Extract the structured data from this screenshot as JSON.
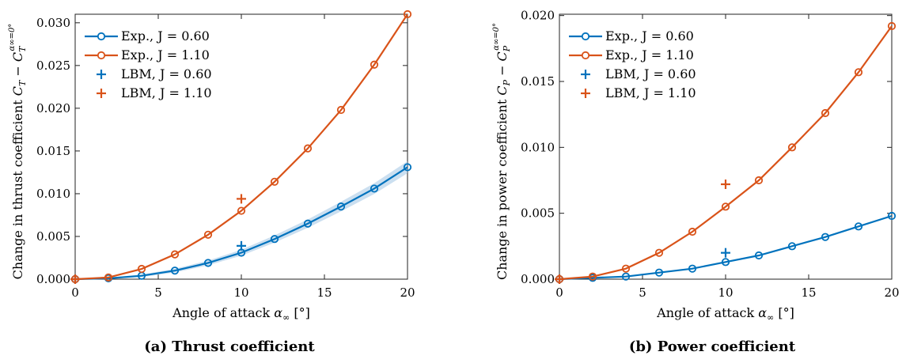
{
  "colors": {
    "blue": "#0072BD",
    "orange": "#D95319",
    "band": "#A8CAE6"
  },
  "chart_data": [
    {
      "type": "line",
      "caption": "(a) Thrust coefficient",
      "xlabel": "Angle of attack α∞ [°]",
      "ylabel": "Change in thrust coefficient C_T − C_T^(α∞=0°)",
      "xlim": [
        0,
        20
      ],
      "ylim": [
        0,
        0.031
      ],
      "xticks": [
        0,
        5,
        10,
        15,
        20
      ],
      "yticks": [
        0,
        0.005,
        0.01,
        0.015,
        0.02,
        0.025,
        0.03
      ],
      "ytick_labels": [
        "0.000",
        "0.005",
        "0.010",
        "0.015",
        "0.020",
        "0.025",
        "0.030"
      ],
      "legend_position": "top-left",
      "series": [
        {
          "name": "Exp., J = 0.60",
          "color": "#0072BD",
          "marker": "circle",
          "x": [
            0,
            2,
            4,
            6,
            8,
            10,
            12,
            14,
            16,
            18,
            20
          ],
          "y": [
            0,
            0.0001,
            0.0004,
            0.001,
            0.0019,
            0.0031,
            0.0047,
            0.0065,
            0.0085,
            0.0106,
            0.0131
          ],
          "band": 0.0007
        },
        {
          "name": "Exp., J = 1.10",
          "color": "#D95319",
          "marker": "circle",
          "x": [
            0,
            2,
            4,
            6,
            8,
            10,
            12,
            14,
            16,
            18,
            20
          ],
          "y": [
            0,
            0.0002,
            0.0012,
            0.0029,
            0.0052,
            0.008,
            0.0114,
            0.0153,
            0.0198,
            0.0251,
            0.031
          ]
        },
        {
          "name": "LBM, J = 0.60",
          "color": "#0072BD",
          "marker": "plus",
          "x": [
            0,
            10
          ],
          "y": [
            0,
            0.0039
          ]
        },
        {
          "name": "LBM, J = 1.10",
          "color": "#D95319",
          "marker": "plus",
          "x": [
            0,
            10
          ],
          "y": [
            0,
            0.0094
          ]
        }
      ]
    },
    {
      "type": "line",
      "caption": "(b) Power coefficient",
      "xlabel": "Angle of attack α∞ [°]",
      "ylabel": "Change in power coefficient C_P − C_P^(α∞=0°)",
      "xlim": [
        0,
        20
      ],
      "ylim": [
        0,
        0.0201
      ],
      "xticks": [
        0,
        5,
        10,
        15,
        20
      ],
      "yticks": [
        0,
        0.005,
        0.01,
        0.015,
        0.02
      ],
      "ytick_labels": [
        "0.000",
        "0.005",
        "0.010",
        "0.015",
        "0.020"
      ],
      "legend_position": "top-left",
      "series": [
        {
          "name": "Exp., J = 0.60",
          "color": "#0072BD",
          "marker": "circle",
          "x": [
            0,
            2,
            4,
            6,
            8,
            10,
            12,
            14,
            16,
            18,
            20
          ],
          "y": [
            0,
            0.0001,
            0.0002,
            0.0005,
            0.0008,
            0.0013,
            0.0018,
            0.0025,
            0.0032,
            0.004,
            0.0048
          ]
        },
        {
          "name": "Exp., J = 1.10",
          "color": "#D95319",
          "marker": "circle",
          "x": [
            0,
            2,
            4,
            6,
            8,
            10,
            12,
            14,
            16,
            18,
            20
          ],
          "y": [
            0,
            0.0002,
            0.0008,
            0.002,
            0.0036,
            0.0055,
            0.0075,
            0.01,
            0.0126,
            0.0157,
            0.0192
          ]
        },
        {
          "name": "LBM, J = 0.60",
          "color": "#0072BD",
          "marker": "plus",
          "x": [
            0,
            10
          ],
          "y": [
            0,
            0.002
          ]
        },
        {
          "name": "LBM, J = 1.10",
          "color": "#D95319",
          "marker": "plus",
          "x": [
            0,
            10
          ],
          "y": [
            0,
            0.0072
          ]
        }
      ]
    }
  ]
}
